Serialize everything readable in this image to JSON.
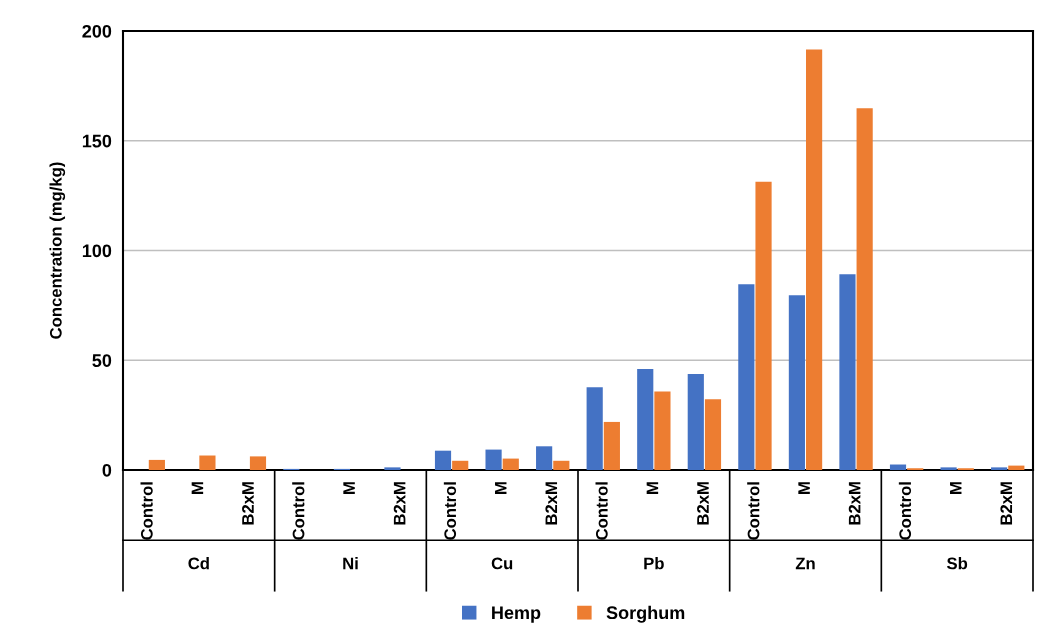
{
  "chart_data": {
    "type": "bar",
    "ylabel": "Concentration (mg/kg)",
    "categories": [
      "Control",
      "M",
      "B2xM",
      "Control",
      "M",
      "B2xM",
      "Control",
      "M",
      "B2xM",
      "Control",
      "M",
      "B2xM",
      "Control",
      "M",
      "B2xM",
      "Control",
      "M",
      "B2xM"
    ],
    "annotations": [
      "Cd",
      "Ni",
      "Cu",
      "Pb",
      "Zn",
      "Sb"
    ],
    "series": [
      {
        "name": "Hemp",
        "color": "#4472c4",
        "values": [
          0,
          0,
          0,
          0.5,
          0.5,
          1.2,
          8.8,
          9.3,
          10.8,
          37.7,
          46,
          43.7,
          84.6,
          79.6,
          89.2,
          2.5,
          1.2,
          1.2
        ]
      },
      {
        "name": "Sorghum",
        "color": "#ed7d31",
        "values": [
          4.6,
          6.6,
          6.2,
          0,
          0,
          0,
          4.2,
          5.2,
          4.2,
          21.9,
          35.8,
          32.2,
          131.3,
          191.6,
          164.8,
          0.8,
          0.8,
          2.0
        ]
      }
    ],
    "ylim": [
      0,
      200
    ],
    "yticks": [
      0,
      50,
      100,
      150,
      200
    ],
    "grid": "y",
    "legend": "bottom"
  }
}
